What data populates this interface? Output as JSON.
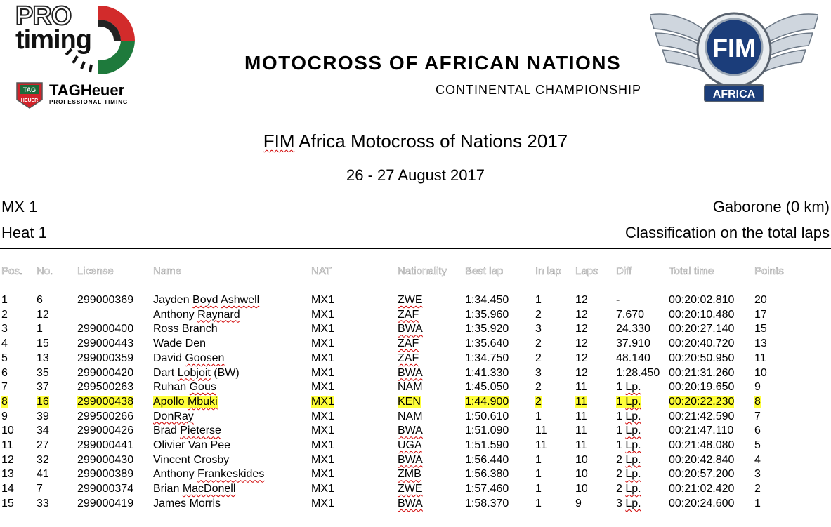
{
  "logos": {
    "pro_word": "PRO",
    "timing_word": "timing",
    "tag_name": "TAGHeuer",
    "tag_sub": "PROFESSIONAL TIMING",
    "tag_badge_top": "TAG",
    "tag_badge_bottom": "HEUER",
    "fim_text": "FIM",
    "fim_region": "AFRICA"
  },
  "banner": {
    "title": "MOTOCROSS OF AFRICAN NATIONS",
    "subtitle": "CONTINENTAL CHAMPIONSHIP"
  },
  "event": {
    "title_prefix": "FIM",
    "title_rest": " Africa Motocross of Nations 2017",
    "date": "26 - 27 August 2017"
  },
  "info": {
    "class": "MX 1",
    "location": "Gaborone (0 km)",
    "session": "Heat 1",
    "classification": "Classification on the total laps"
  },
  "columns": [
    "Pos.",
    "No.",
    "License",
    "Name",
    "NAT",
    "Nationality",
    "Best lap",
    "In lap",
    "Laps",
    "Diff",
    "Total time",
    "Points"
  ],
  "rows": [
    {
      "pos": "1",
      "no": "6",
      "license": "299000369",
      "name": "Jayden Boyd Ashwell",
      "nat": "MX1",
      "nationality": "ZWE",
      "best": "1:34.450",
      "inlap": "1",
      "laps": "12",
      "diff": "-",
      "total": "00:20:02.810",
      "points": "20"
    },
    {
      "pos": "2",
      "no": "12",
      "license": "",
      "name": "Anthony Raynard",
      "nat": "MX1",
      "nationality": "ZAF",
      "best": "1:35.960",
      "inlap": "2",
      "laps": "12",
      "diff": "7.670",
      "total": "00:20:10.480",
      "points": "17"
    },
    {
      "pos": "3",
      "no": "1",
      "license": "299000400",
      "name": "Ross Branch",
      "nat": "MX1",
      "nationality": "BWA",
      "best": "1:35.920",
      "inlap": "3",
      "laps": "12",
      "diff": "24.330",
      "total": "00:20:27.140",
      "points": "15"
    },
    {
      "pos": "4",
      "no": "15",
      "license": "299000443",
      "name": "Wade Den",
      "nat": "MX1",
      "nationality": "ZAF",
      "best": "1:35.640",
      "inlap": "2",
      "laps": "12",
      "diff": "37.910",
      "total": "00:20:40.720",
      "points": "13"
    },
    {
      "pos": "5",
      "no": "13",
      "license": "299000359",
      "name": "David Goosen",
      "nat": "MX1",
      "nationality": "ZAF",
      "best": "1:34.750",
      "inlap": "2",
      "laps": "12",
      "diff": "48.140",
      "total": "00:20:50.950",
      "points": "11"
    },
    {
      "pos": "6",
      "no": "35",
      "license": "299000420",
      "name": "Dart Lobjoit (BW)",
      "nat": "MX1",
      "nationality": "BWA",
      "best": "1:41.330",
      "inlap": "3",
      "laps": "12",
      "diff": "1:28.450",
      "total": "00:21:31.260",
      "points": "10"
    },
    {
      "pos": "7",
      "no": "37",
      "license": "299500263",
      "name": "Ruhan Gous",
      "nat": "MX1",
      "nationality": "NAM",
      "best": "1:45.050",
      "inlap": "2",
      "laps": "11",
      "diff": "1 Lp.",
      "total": "00:20:19.650",
      "points": "9"
    },
    {
      "pos": "8",
      "no": "16",
      "license": "299000438",
      "name": "Apollo Mbuki",
      "nat": "MX1",
      "nationality": "KEN",
      "best": "1:44.900",
      "inlap": "2",
      "laps": "11",
      "diff": "1 Lp.",
      "total": "00:20:22.230",
      "points": "8",
      "highlight": true
    },
    {
      "pos": "9",
      "no": "39",
      "license": "299500266",
      "name": "DonRay",
      "nat": "MX1",
      "nationality": "NAM",
      "best": "1:50.610",
      "inlap": "1",
      "laps": "11",
      "diff": "1 Lp.",
      "total": "00:21:42.590",
      "points": "7"
    },
    {
      "pos": "10",
      "no": "34",
      "license": "299000426",
      "name": "Brad Pieterse",
      "nat": "MX1",
      "nationality": "BWA",
      "best": "1:51.090",
      "inlap": "11",
      "laps": "11",
      "diff": "1 Lp.",
      "total": "00:21:47.110",
      "points": "6"
    },
    {
      "pos": "11",
      "no": "27",
      "license": "299000441",
      "name": "Olivier Van Pee",
      "nat": "MX1",
      "nationality": "UGA",
      "best": "1:51.590",
      "inlap": "11",
      "laps": "11",
      "diff": "1 Lp.",
      "total": "00:21:48.080",
      "points": "5"
    },
    {
      "pos": "12",
      "no": "32",
      "license": "299000430",
      "name": "Vincent Crosby",
      "nat": "MX1",
      "nationality": "BWA",
      "best": "1:56.440",
      "inlap": "1",
      "laps": "10",
      "diff": "2 Lp.",
      "total": "00:20:42.840",
      "points": "4"
    },
    {
      "pos": "13",
      "no": "41",
      "license": "299000389",
      "name": "Anthony Frankeskides",
      "nat": "MX1",
      "nationality": "ZMB",
      "best": "1:56.380",
      "inlap": "1",
      "laps": "10",
      "diff": "2 Lp.",
      "total": "00:20:57.200",
      "points": "3"
    },
    {
      "pos": "14",
      "no": "7",
      "license": "299000374",
      "name": "Brian MacDonell",
      "nat": "MX1",
      "nationality": "ZWE",
      "best": "1:57.460",
      "inlap": "1",
      "laps": "10",
      "diff": "2 Lp.",
      "total": "00:21:02.420",
      "points": "2"
    },
    {
      "pos": "15",
      "no": "33",
      "license": "299000419",
      "name": "James Morris",
      "nat": "MX1",
      "nationality": "BWA",
      "best": "1:58.370",
      "inlap": "1",
      "laps": "9",
      "diff": "3 Lp.",
      "total": "00:20:24.600",
      "points": "1"
    }
  ],
  "colors": {
    "highlight": "#ffff3a",
    "pro_green": "#1e7a3c",
    "pro_red": "#d22b2b",
    "tag_red": "#d2232a",
    "fim_blue": "#1b3d7a",
    "spellcheck": "#d00000"
  }
}
